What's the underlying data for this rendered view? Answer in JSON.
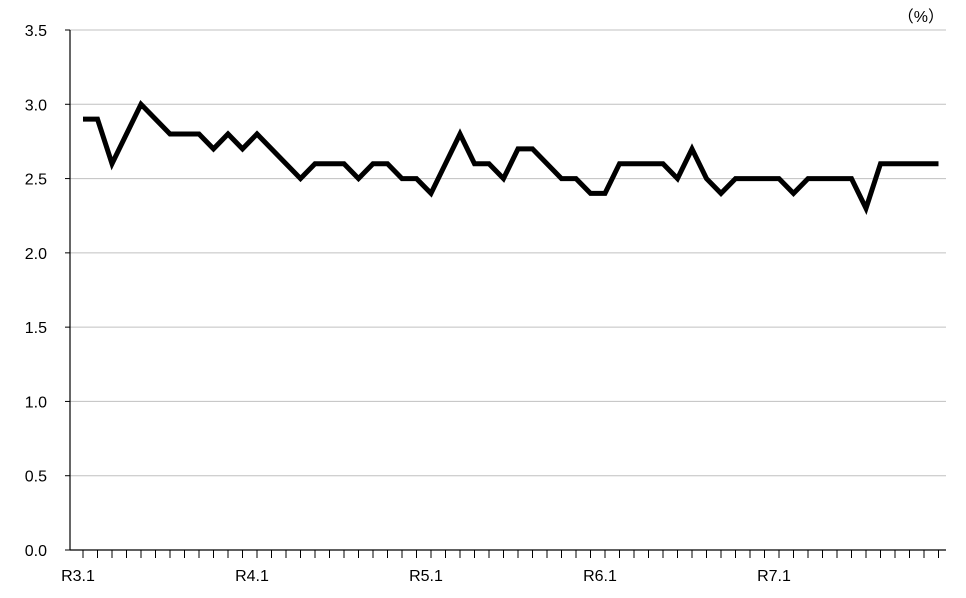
{
  "chart_data": {
    "type": "line",
    "unit_label": "（%）",
    "ylim": [
      0,
      3.5
    ],
    "y_ticks": [
      "0.0",
      "0.5",
      "1.0",
      "1.5",
      "2.0",
      "2.5",
      "3.0",
      "3.5"
    ],
    "x_tick_labels": [
      "R3.1",
      "R4.1",
      "R5.1",
      "R6.1",
      "R7.1"
    ],
    "x_label_indices": [
      0,
      12,
      24,
      36,
      48
    ],
    "grid": true,
    "legend": "none",
    "line_color": "#000000",
    "series": [
      {
        "values": [
          2.9,
          2.9,
          2.6,
          2.8,
          3.0,
          2.9,
          2.8,
          2.8,
          2.8,
          2.7,
          2.8,
          2.7,
          2.8,
          2.7,
          2.6,
          2.5,
          2.6,
          2.6,
          2.6,
          2.5,
          2.6,
          2.6,
          2.5,
          2.5,
          2.4,
          2.6,
          2.8,
          2.6,
          2.6,
          2.5,
          2.7,
          2.7,
          2.6,
          2.5,
          2.5,
          2.4,
          2.4,
          2.6,
          2.6,
          2.6,
          2.6,
          2.5,
          2.7,
          2.5,
          2.4,
          2.5,
          2.5,
          2.5,
          2.5,
          2.4,
          2.5,
          2.5,
          2.5,
          2.5,
          2.3,
          2.6,
          2.6,
          2.6,
          2.6,
          2.6
        ]
      }
    ]
  }
}
